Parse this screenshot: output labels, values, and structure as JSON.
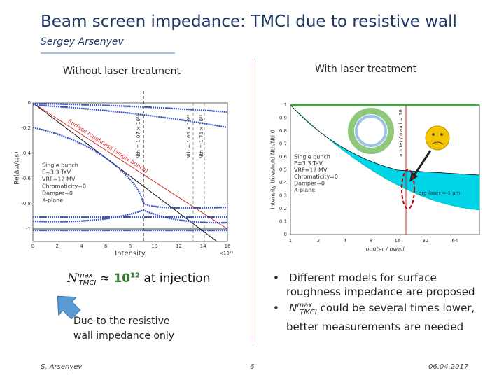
{
  "title": "Beam screen impedance: TMCI due to resistive wall",
  "author": "Sergey Arsenyev",
  "left_heading": "Without laser treatment",
  "right_heading": "With laser treatment",
  "left_plot": {
    "xticks": [
      "0",
      "2",
      "4",
      "6",
      "8",
      "10",
      "12",
      "14",
      "16"
    ],
    "x_exponent": "×10¹¹",
    "yticks": [
      "0",
      "-0.2",
      "-0.4",
      "-0.6",
      "-0.8",
      "-1"
    ],
    "xlabel": "Intensity",
    "ylabel": "Re(Δω/ωs)",
    "annotation": "Surface roughness (single bunch)",
    "thresholds": [
      "Nth = 1.07 × 10¹²",
      "Nth = 1.66 × 10¹²",
      "Nth = 1.75 × 10¹²"
    ],
    "legend": [
      "Single bunch",
      "E=3.3 TeV",
      "VRF=12 MV",
      "Chromaticity=0",
      "Damper=0",
      "X-plane"
    ]
  },
  "right_plot": {
    "xticks": [
      "1",
      "2",
      "4",
      "8",
      "16",
      "32",
      "64"
    ],
    "yticks": [
      "0",
      "0.1",
      "0.2",
      "0.3",
      "0.4",
      "0.5",
      "0.6",
      "0.7",
      "0.8",
      "0.9",
      "1"
    ],
    "xlabel": "σouter / σwall",
    "ylabel": "Intensity threshold Nth/Nth0",
    "marker": "σouter / σwall = 16",
    "band_label": "σrg-laser = 1 μm",
    "legend": [
      "Single bunch",
      "E=3.3 TeV",
      "VRF=12 MV",
      "Chromaticity=0",
      "Damper=0",
      "X-plane"
    ]
  },
  "formula": {
    "symbol": "N",
    "sup": "max",
    "sub": "TMCI",
    "approx": "≈",
    "base": "10",
    "exp": "12",
    "tail": "at injection"
  },
  "note": [
    "Due to the resistive",
    "wall impedance only"
  ],
  "bullets": {
    "first": [
      "Different models for surface",
      "roughness impedance are proposed"
    ],
    "second": {
      "symbol": "N",
      "sup": "max",
      "sub": "TMCI",
      "tail": "could be several times lower,",
      "line2": "better measurements are needed"
    }
  },
  "footer": {
    "author": "S. Arsenyev",
    "page": "6",
    "date": "06.04.2017"
  }
}
